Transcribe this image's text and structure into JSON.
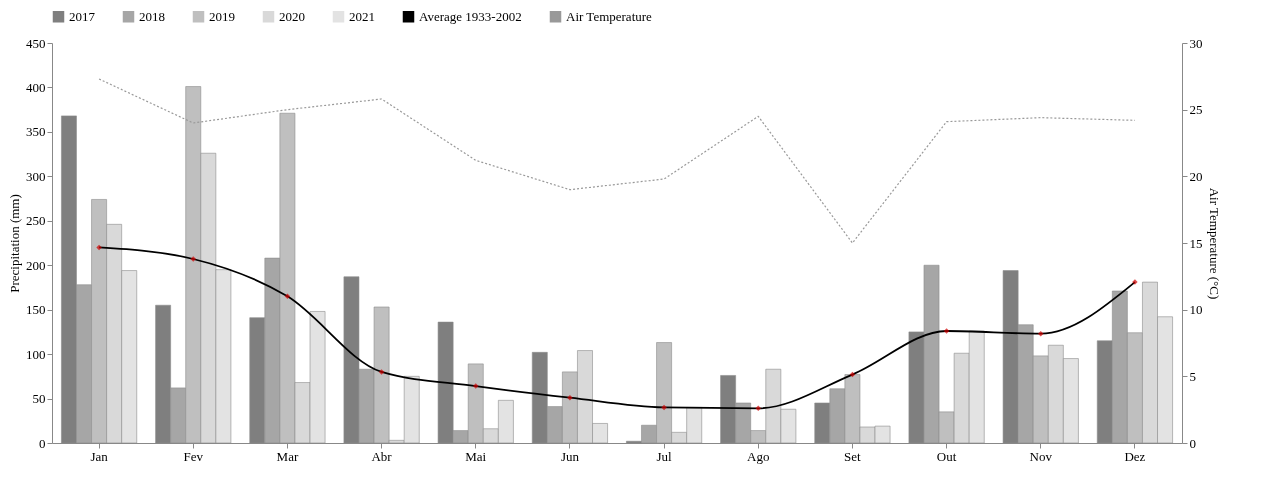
{
  "chart_data": {
    "type": "bar",
    "categories": [
      "Jan",
      "Fev",
      "Mar",
      "Abr",
      "Mai",
      "Jun",
      "Jul",
      "Ago",
      "Set",
      "Out",
      "Nov",
      "Dez"
    ],
    "ylabel": "Precipitation (mm)",
    "y2label": "Air Temperature (°C)",
    "ylim": [
      0,
      450
    ],
    "yticks": [
      0,
      50,
      100,
      150,
      200,
      250,
      300,
      350,
      400,
      450
    ],
    "y2lim": [
      0,
      30
    ],
    "y2ticks": [
      0,
      5,
      10,
      15,
      20,
      25,
      30
    ],
    "legend": "top",
    "series": [
      {
        "name": "2017",
        "color": "#7f7f7f",
        "values": [
          368,
          155,
          141,
          187,
          136,
          102,
          2,
          76,
          45,
          125,
          194,
          115
        ]
      },
      {
        "name": "2018",
        "color": "#a6a6a6",
        "values": [
          178,
          62,
          208,
          83,
          14,
          41,
          20,
          45,
          61,
          200,
          133,
          171
        ]
      },
      {
        "name": "2019",
        "color": "#bfbfbf",
        "values": [
          274,
          401,
          371,
          153,
          89,
          80,
          113,
          14,
          77,
          35,
          98,
          124
        ]
      },
      {
        "name": "2020",
        "color": "#d9d9d9",
        "values": [
          246,
          326,
          68,
          3,
          16,
          104,
          12,
          83,
          18,
          101,
          110,
          181
        ]
      },
      {
        "name": "2021",
        "color": "#e3e3e3",
        "values": [
          194,
          195,
          148,
          75,
          48,
          22,
          40,
          38,
          19,
          126,
          95,
          142
        ]
      },
      {
        "name": "Average 1933-2002",
        "type": "line",
        "color": "#000000",
        "marker": "diamond",
        "line_style": "solid",
        "values": [
          220,
          207,
          165,
          80,
          64,
          51,
          40,
          39,
          77,
          126,
          123,
          181
        ]
      },
      {
        "name": "Air Temperature",
        "type": "line",
        "axis": "y2",
        "color": "#999999",
        "marker": "none",
        "line_style": "dotted",
        "values": [
          27.3,
          24,
          25,
          25.8,
          21.2,
          19,
          19.8,
          24.5,
          15,
          24.1,
          24.4,
          24.2
        ]
      }
    ]
  }
}
